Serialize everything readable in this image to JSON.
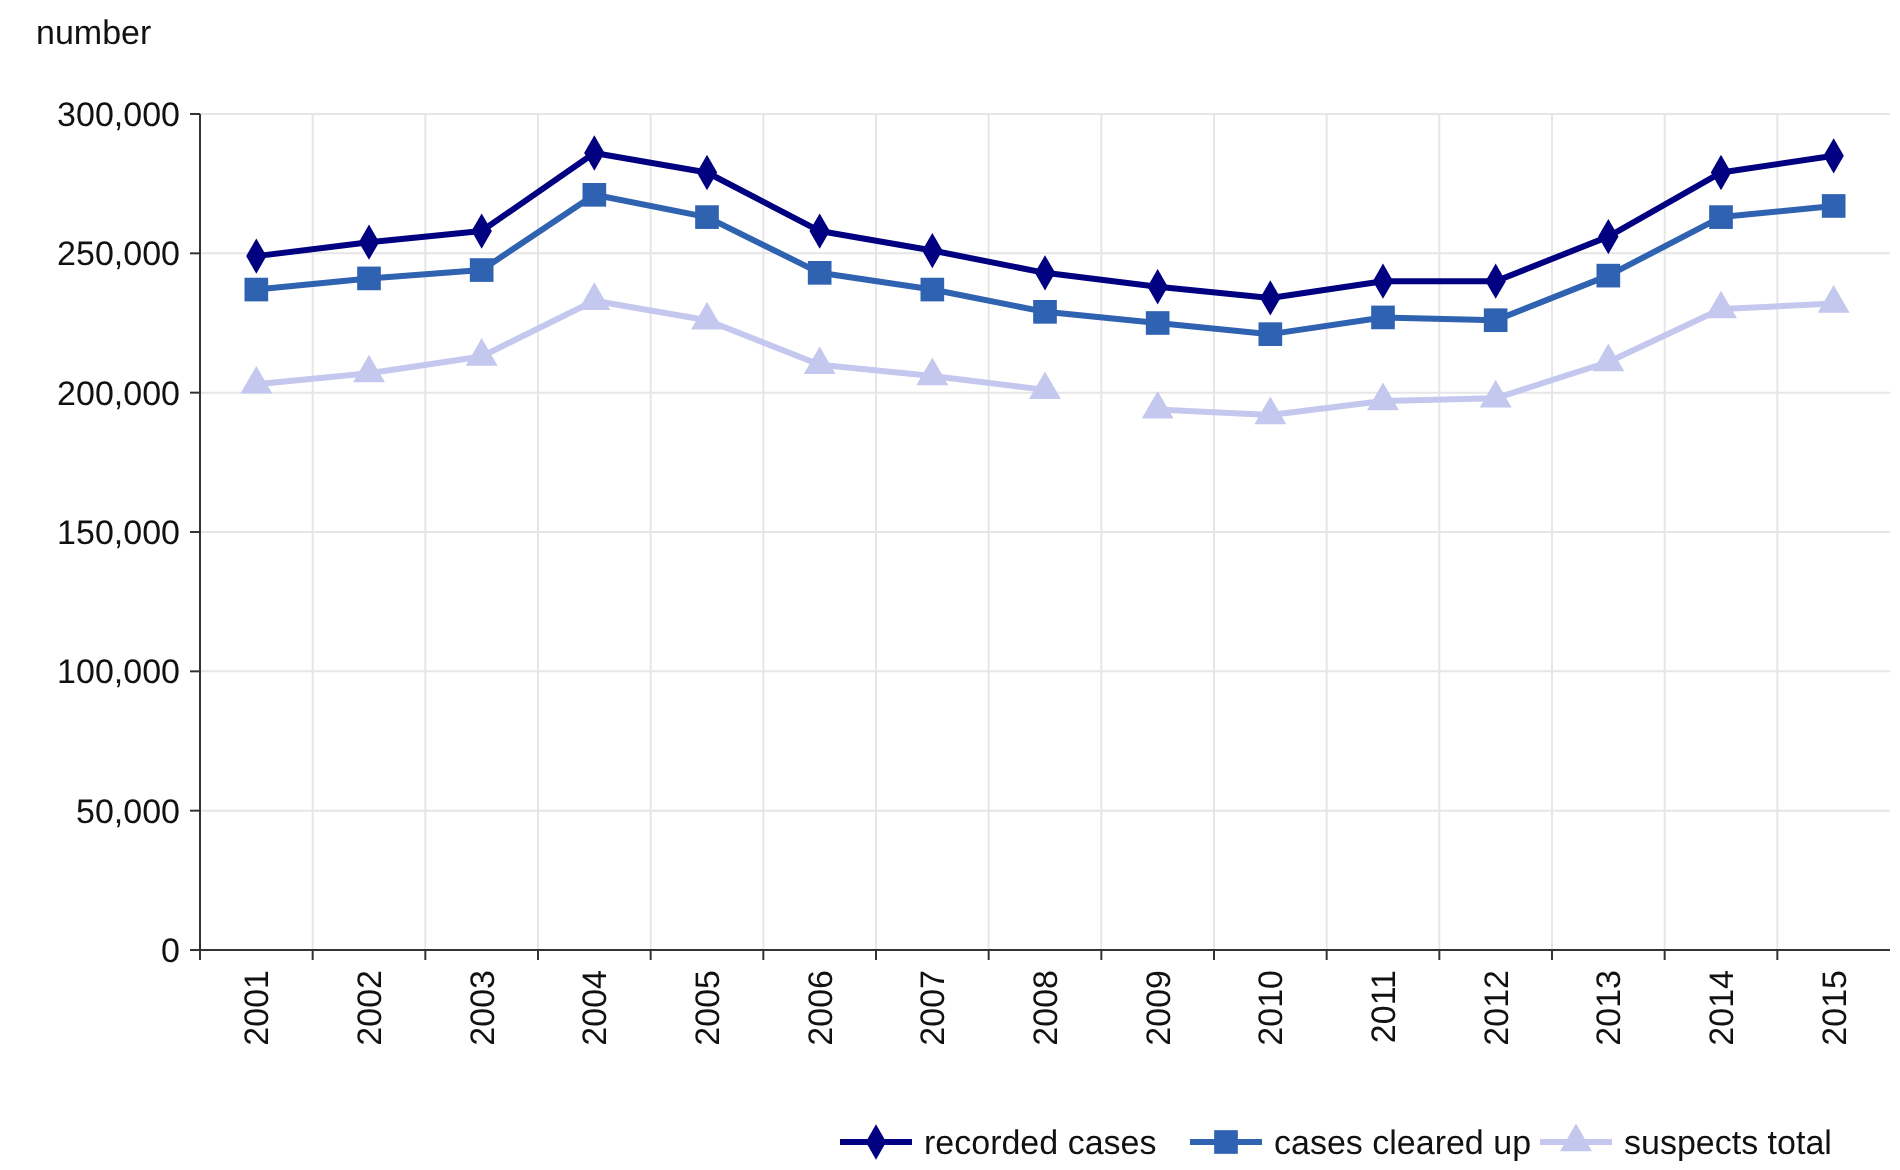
{
  "chart_data": {
    "type": "line",
    "ylabel": "number",
    "categories": [
      "2001",
      "2002",
      "2003",
      "2004",
      "2005",
      "2006",
      "2007",
      "2008",
      "2009",
      "2010",
      "2011",
      "2012",
      "2013",
      "2014",
      "2015"
    ],
    "ylim": [
      0,
      300000
    ],
    "yticks": [
      {
        "value": 0,
        "label": "0"
      },
      {
        "value": 50000,
        "label": "50,000"
      },
      {
        "value": 100000,
        "label": "100,000"
      },
      {
        "value": 150000,
        "label": "150,000"
      },
      {
        "value": 200000,
        "label": "200,000"
      },
      {
        "value": 250000,
        "label": "250,000"
      },
      {
        "value": 300000,
        "label": "300,000"
      }
    ],
    "grid": true,
    "legend": "bottom",
    "series": [
      {
        "name": "recorded cases",
        "color": "#000080",
        "marker": "diamond",
        "values": [
          249000,
          254000,
          258000,
          286000,
          279000,
          258000,
          251000,
          243000,
          238000,
          234000,
          240000,
          240000,
          256000,
          279000,
          285000
        ]
      },
      {
        "name": "cases cleared up",
        "color": "#2f62b0",
        "marker": "square",
        "values": [
          237000,
          241000,
          244000,
          271000,
          263000,
          243000,
          237000,
          229000,
          225000,
          221000,
          227000,
          226000,
          242000,
          263000,
          267000
        ]
      },
      {
        "name": "suspects total",
        "color": "#c5c8ee",
        "marker": "triangle",
        "values": [
          203000,
          207000,
          213000,
          233000,
          226000,
          210000,
          206000,
          201000,
          null,
          null,
          null,
          null,
          null,
          null,
          null
        ]
      },
      {
        "color": "#c5c8ee",
        "marker": "triangle",
        "values": [
          null,
          null,
          null,
          null,
          null,
          null,
          null,
          null,
          194000,
          192000,
          197000,
          198000,
          211000,
          230000,
          232000
        ]
      }
    ]
  }
}
